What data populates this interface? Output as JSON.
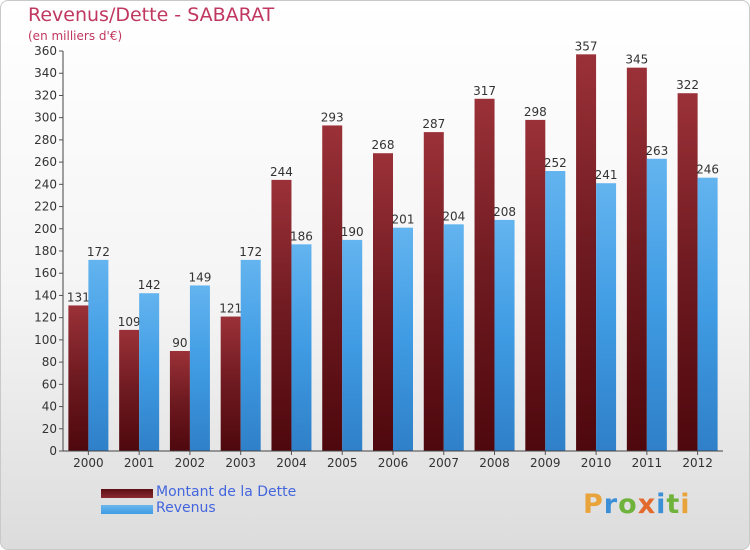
{
  "header": {
    "title": "Revenus/Dette - SABARAT",
    "subtitle": "(en milliers d'€)"
  },
  "colors": {
    "title": "#c0375f",
    "dette": "#7a1f25",
    "revenus": "#3f9be3",
    "legend_text": "#4466dd"
  },
  "legend": {
    "items": [
      {
        "label": "Montant de la Dette",
        "color": "#5c0f14"
      },
      {
        "label": "Revenus",
        "color": "#3f9be3"
      }
    ]
  },
  "logo": {
    "text": "Proxiti",
    "letters": [
      {
        "ch": "P",
        "color": "#e8a33a"
      },
      {
        "ch": "r",
        "color": "#3b8fd6"
      },
      {
        "ch": "o",
        "color": "#6fb33c"
      },
      {
        "ch": "x",
        "color": "#e26a2c"
      },
      {
        "ch": "i",
        "color": "#3b8fd6"
      },
      {
        "ch": "t",
        "color": "#6fb33c"
      },
      {
        "ch": "i",
        "color": "#e8a33a"
      }
    ]
  },
  "chart_data": {
    "type": "bar",
    "categories": [
      "2000",
      "2001",
      "2002",
      "2003",
      "2004",
      "2005",
      "2006",
      "2007",
      "2008",
      "2009",
      "2010",
      "2011",
      "2012"
    ],
    "series": [
      {
        "name": "Montant de la Dette",
        "values": [
          131,
          109,
          90,
          121,
          244,
          293,
          268,
          287,
          317,
          298,
          357,
          345,
          322
        ]
      },
      {
        "name": "Revenus",
        "values": [
          172,
          142,
          149,
          172,
          186,
          190,
          201,
          204,
          208,
          252,
          241,
          263,
          246
        ]
      }
    ],
    "ylim": [
      0,
      360
    ],
    "ytick_step": 20,
    "grid": false,
    "legend_position": "bottom-left"
  }
}
